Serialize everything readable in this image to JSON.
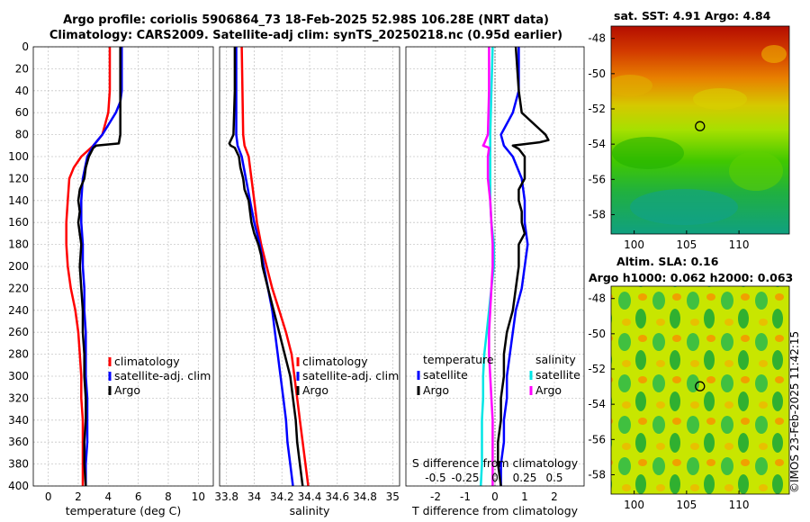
{
  "title": {
    "line1": "Argo profile: coriolis 5906864_73 18-Feb-2025 52.98S 106.28E (NRT data)",
    "line2": "Climatology: CARS2009. Satellite-adj clim: synTS_20250218.nc (0.95d earlier)"
  },
  "credit": "©IMOS 23-Feb-2025 11:42:15",
  "colors": {
    "climatology": "#ff0000",
    "satellite": "#0000ff",
    "argo": "#000000",
    "sal_sat": "#00e5e5",
    "sal_argo": "#ff00ff"
  },
  "chart_data": [
    {
      "type": "line",
      "xlabel": "temperature (deg C)",
      "ylabel": "depth",
      "xlim": [
        -1,
        11
      ],
      "ylim": [
        0,
        400
      ],
      "xticks": [
        "0",
        "2",
        "4",
        "6",
        "8",
        "10"
      ],
      "yticks": [
        "0",
        "20",
        "40",
        "60",
        "80",
        "100",
        "120",
        "140",
        "160",
        "180",
        "200",
        "220",
        "240",
        "260",
        "280",
        "300",
        "320",
        "340",
        "360",
        "380",
        "400"
      ],
      "legend": [
        "climatology",
        "satellite-adj. clim",
        "Argo"
      ],
      "series": [
        {
          "name": "climatology",
          "depth": [
            0,
            40,
            60,
            80,
            90,
            100,
            110,
            120,
            140,
            160,
            180,
            200,
            220,
            240,
            260,
            280,
            300,
            320,
            340,
            360,
            380,
            400
          ],
          "values": [
            4.1,
            4.1,
            4.0,
            3.6,
            3.0,
            2.2,
            1.7,
            1.4,
            1.3,
            1.2,
            1.2,
            1.3,
            1.5,
            1.8,
            2.0,
            2.1,
            2.2,
            2.2,
            2.3,
            2.3,
            2.3,
            2.3
          ]
        },
        {
          "name": "satellite-adj. clim",
          "depth": [
            0,
            40,
            50,
            60,
            80,
            90,
            100,
            120,
            140,
            160,
            180,
            200,
            220,
            240,
            260,
            280,
            300,
            320,
            340,
            360,
            380,
            400
          ],
          "values": [
            4.9,
            4.9,
            4.8,
            4.5,
            3.6,
            3.0,
            2.6,
            2.3,
            2.2,
            2.2,
            2.3,
            2.3,
            2.4,
            2.4,
            2.5,
            2.5,
            2.5,
            2.6,
            2.6,
            2.6,
            2.5,
            2.5
          ]
        },
        {
          "name": "Argo",
          "depth": [
            0,
            20,
            40,
            60,
            80,
            88,
            90,
            92,
            100,
            110,
            120,
            130,
            140,
            150,
            160,
            180,
            200,
            220,
            240,
            260,
            280,
            300,
            320,
            340,
            360,
            380,
            400
          ],
          "values": [
            4.8,
            4.8,
            4.8,
            4.8,
            4.8,
            4.7,
            3.2,
            3.0,
            2.7,
            2.5,
            2.4,
            2.1,
            2.0,
            2.1,
            2.0,
            2.2,
            2.1,
            2.2,
            2.3,
            2.3,
            2.4,
            2.4,
            2.5,
            2.5,
            2.4,
            2.4,
            2.5
          ]
        }
      ]
    },
    {
      "type": "line",
      "xlabel": "salinity",
      "ylabel": "depth",
      "xlim": [
        33.75,
        35.05
      ],
      "ylim": [
        0,
        400
      ],
      "xticks": [
        "33.8",
        "34",
        "34.2",
        "34.4",
        "34.6",
        "34.8",
        "35"
      ],
      "legend": [
        "climatology",
        "satellite-adj. clim",
        "Argo"
      ],
      "series": [
        {
          "name": "climatology",
          "depth": [
            0,
            80,
            90,
            100,
            120,
            140,
            160,
            180,
            200,
            220,
            240,
            260,
            280,
            300,
            320,
            340,
            360,
            380,
            400
          ],
          "values": [
            33.91,
            33.92,
            33.93,
            33.96,
            33.98,
            34.0,
            34.02,
            34.05,
            34.09,
            34.13,
            34.18,
            34.23,
            34.27,
            34.29,
            34.31,
            34.33,
            34.35,
            34.37,
            34.39
          ]
        },
        {
          "name": "satellite-adj. clim",
          "depth": [
            0,
            80,
            90,
            100,
            120,
            140,
            160,
            180,
            200,
            220,
            240,
            260,
            280,
            300,
            320,
            340,
            360,
            380,
            400
          ],
          "values": [
            33.87,
            33.87,
            33.88,
            33.91,
            33.94,
            33.97,
            34.0,
            34.04,
            34.07,
            34.1,
            34.13,
            34.15,
            34.17,
            34.19,
            34.21,
            34.23,
            34.24,
            34.26,
            34.28
          ]
        },
        {
          "name": "Argo",
          "depth": [
            0,
            40,
            80,
            88,
            90,
            92,
            100,
            110,
            120,
            130,
            140,
            150,
            160,
            170,
            180,
            190,
            200,
            220,
            240,
            260,
            280,
            300,
            320,
            340,
            360,
            380,
            400
          ],
          "values": [
            33.86,
            33.86,
            33.85,
            33.82,
            33.83,
            33.86,
            33.89,
            33.9,
            33.92,
            33.93,
            33.96,
            33.97,
            33.98,
            34.0,
            34.03,
            34.05,
            34.06,
            34.1,
            34.14,
            34.18,
            34.22,
            34.26,
            34.28,
            34.3,
            34.31,
            34.33,
            34.35
          ]
        }
      ]
    },
    {
      "type": "line",
      "xlabel": "T difference from climatology",
      "secondary_xlabel": "S difference from climatology",
      "ylabel": "depth",
      "xlim": [
        -3,
        3
      ],
      "ylim": [
        0,
        400
      ],
      "xticks": [
        "-2",
        "-1",
        "0",
        "1",
        "2"
      ],
      "secondary_xticks": [
        "-0.5",
        "-0.25",
        "0",
        "0.25",
        "0.5"
      ],
      "legend_left": {
        "title": "temperature",
        "entries": [
          "satellite",
          "Argo"
        ]
      },
      "legend_right": {
        "title": "salinity",
        "entries": [
          "satellite",
          "Argo"
        ]
      },
      "series": [
        {
          "name": "temperature satellite",
          "depth": [
            0,
            40,
            60,
            80,
            90,
            100,
            120,
            140,
            160,
            180,
            200,
            220,
            240,
            260,
            280,
            300,
            320,
            340,
            360,
            380,
            400
          ],
          "values": [
            0.8,
            0.8,
            0.6,
            0.2,
            0.3,
            0.6,
            0.9,
            1.0,
            1.0,
            1.1,
            1.0,
            0.9,
            0.7,
            0.6,
            0.5,
            0.4,
            0.4,
            0.3,
            0.3,
            0.2,
            0.2
          ]
        },
        {
          "name": "temperature Argo",
          "depth": [
            0,
            40,
            60,
            75,
            80,
            85,
            87,
            90,
            93,
            100,
            110,
            120,
            130,
            140,
            150,
            160,
            170,
            180,
            200,
            220,
            240,
            260,
            280,
            300,
            320,
            340,
            360,
            380,
            400
          ],
          "values": [
            0.7,
            0.8,
            0.9,
            1.5,
            1.7,
            1.8,
            1.5,
            0.6,
            0.8,
            1.0,
            1.0,
            1.0,
            0.8,
            0.8,
            0.9,
            0.9,
            1.0,
            0.8,
            0.8,
            0.7,
            0.6,
            0.4,
            0.3,
            0.3,
            0.2,
            0.2,
            0.1,
            0.1,
            0.2
          ]
        },
        {
          "name": "salinity satellite",
          "depth": [
            0,
            40,
            80,
            100,
            120,
            140,
            160,
            180,
            200,
            220,
            240,
            260,
            280,
            300,
            320,
            340,
            360,
            380,
            400
          ],
          "values": [
            -0.02,
            -0.03,
            -0.04,
            -0.04,
            -0.04,
            -0.04,
            -0.03,
            -0.01,
            -0.01,
            -0.03,
            -0.05,
            -0.07,
            -0.09,
            -0.1,
            -0.1,
            -0.11,
            -0.11,
            -0.11,
            -0.12
          ]
        },
        {
          "name": "salinity Argo",
          "depth": [
            0,
            40,
            80,
            88,
            90,
            92,
            100,
            120,
            140,
            160,
            180,
            200,
            220,
            240,
            260,
            280,
            300,
            320,
            340,
            360,
            380,
            400
          ],
          "values": [
            -0.05,
            -0.05,
            -0.06,
            -0.09,
            -0.1,
            -0.05,
            -0.06,
            -0.06,
            -0.04,
            -0.03,
            -0.02,
            -0.02,
            -0.03,
            -0.04,
            -0.05,
            -0.05,
            -0.04,
            -0.03,
            -0.02,
            -0.02,
            -0.02,
            -0.02
          ]
        }
      ]
    },
    {
      "type": "heatmap",
      "title": "sat. SST: 4.91 Argo: 4.84",
      "xticks": [
        "100",
        "105",
        "110"
      ],
      "yticks": [
        "-48",
        "-50",
        "-52",
        "-54",
        "-56",
        "-58"
      ],
      "xlim": [
        97.8,
        114.8
      ],
      "ylim": [
        -59.1,
        -47.3
      ],
      "marker": {
        "lon": 106.28,
        "lat": -52.98
      }
    },
    {
      "type": "heatmap",
      "title_line1": "Altim. SLA: 0.16",
      "title_line2": "Argo h1000: 0.062 h2000: 0.063",
      "xticks": [
        "100",
        "105",
        "110"
      ],
      "yticks": [
        "-48",
        "-50",
        "-52",
        "-54",
        "-56",
        "-58"
      ],
      "xlim": [
        97.8,
        114.8
      ],
      "ylim": [
        -59.1,
        -47.3
      ],
      "marker": {
        "lon": 106.28,
        "lat": -52.98
      }
    }
  ]
}
